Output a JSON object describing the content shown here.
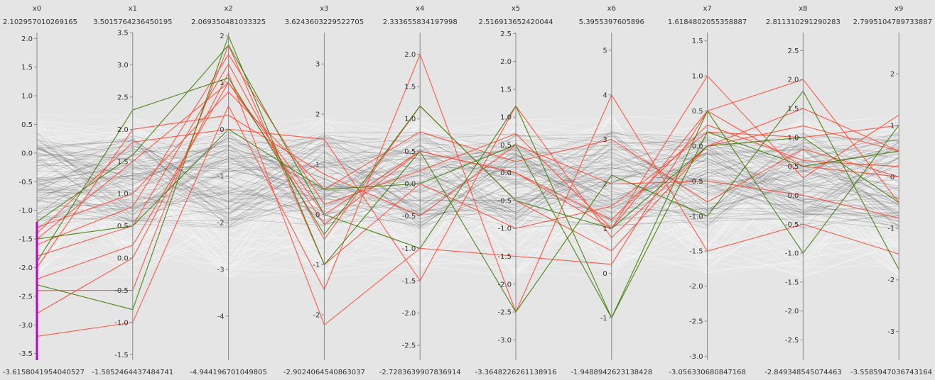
{
  "chart_data": {
    "type": "parallel-coordinates",
    "axes": [
      {
        "name": "x0",
        "max_label": "2.102957010269165",
        "min_label": "-3.6158041954040527",
        "range": [
          -3.6158041954040527,
          2.102957010269165
        ],
        "ticks": [
          "2.0",
          "1.5",
          "1.0",
          "0.5",
          "0.0",
          "-0.5",
          "-1.0",
          "-1.5",
          "-2.0",
          "-2.5",
          "-3.0",
          "-3.5"
        ],
        "tick_values": [
          2.0,
          1.5,
          1.0,
          0.5,
          0.0,
          -0.5,
          -1.0,
          -1.5,
          -2.0,
          -2.5,
          -3.0,
          -3.5
        ]
      },
      {
        "name": "x1",
        "max_label": "3.5015764236450195",
        "min_label": "-1.5852464437484741",
        "range": [
          -1.5852464437484741,
          3.5015764236450195
        ],
        "ticks": [
          "3.5",
          "3.0",
          "2.5",
          "2.0",
          "1.5",
          "1.0",
          "0.5",
          "0.0",
          "-0.5",
          "-1.0",
          "-1.5"
        ],
        "tick_values": [
          3.5,
          3.0,
          2.5,
          2.0,
          1.5,
          1.0,
          0.5,
          0.0,
          -0.5,
          -1.0,
          -1.5
        ]
      },
      {
        "name": "x2",
        "max_label": "2.069350481033325",
        "min_label": "-4.944196701049805",
        "range": [
          -4.944196701049805,
          2.069350481033325
        ],
        "ticks": [
          "2",
          "1",
          "0",
          "-1",
          "-2",
          "-3",
          "-4"
        ],
        "tick_values": [
          2,
          1,
          0,
          -1,
          -2,
          -3,
          -4
        ]
      },
      {
        "name": "x3",
        "max_label": "3.6243603229522705",
        "min_label": "-2.9024064540863037",
        "range": [
          -2.9024064540863037,
          3.6243603229522705
        ],
        "ticks": [
          "3",
          "2",
          "1",
          "0",
          "-1",
          "-2"
        ],
        "tick_values": [
          3,
          2,
          1,
          0,
          -1,
          -2
        ]
      },
      {
        "name": "x4",
        "max_label": "2.333655834197998",
        "min_label": "-2.7283639907836914",
        "range": [
          -2.7283639907836914,
          2.333655834197998
        ],
        "ticks": [
          "2.0",
          "1.5",
          "1.0",
          "0.5",
          "0.0",
          "-0.5",
          "-1.0",
          "-1.5",
          "-2.0",
          "-2.5"
        ],
        "tick_values": [
          2.0,
          1.5,
          1.0,
          0.5,
          0.0,
          -0.5,
          -1.0,
          -1.5,
          -2.0,
          -2.5
        ]
      },
      {
        "name": "x5",
        "max_label": "2.516913652420044",
        "min_label": "-3.3648226261138916",
        "range": [
          -3.3648226261138916,
          2.516913652420044
        ],
        "ticks": [
          "2.5",
          "2.0",
          "1.5",
          "1.0",
          "0.5",
          "0.0",
          "-0.5",
          "-1.0",
          "-1.5",
          "-2.0",
          "-2.5",
          "-3.0"
        ],
        "tick_values": [
          2.5,
          2.0,
          1.5,
          1.0,
          0.5,
          0.0,
          -0.5,
          -1.0,
          -1.5,
          -2.0,
          -2.5,
          -3.0
        ]
      },
      {
        "name": "x6",
        "max_label": "5.3955397605896",
        "min_label": "-1.9488942623138428",
        "range": [
          -1.9488942623138428,
          5.3955397605896
        ],
        "ticks": [
          "5",
          "4",
          "3",
          "2",
          "1",
          "0",
          "-1"
        ],
        "tick_values": [
          5,
          4,
          3,
          2,
          1,
          0,
          -1
        ]
      },
      {
        "name": "x7",
        "max_label": "1.6184802055358887",
        "min_label": "-3.056330680847168",
        "range": [
          -3.056330680847168,
          1.6184802055358887
        ],
        "ticks": [
          "1.5",
          "1.0",
          "0.5",
          "0.0",
          "-0.5",
          "-1.0",
          "-1.5",
          "-2.0",
          "-2.5",
          "-3.0"
        ],
        "tick_values": [
          1.5,
          1.0,
          0.5,
          0.0,
          -0.5,
          -1.0,
          -1.5,
          -2.0,
          -2.5,
          -3.0
        ]
      },
      {
        "name": "x8",
        "max_label": "2.811310291290283",
        "min_label": "-2.849348545074463",
        "range": [
          -2.849348545074463,
          2.811310291290283
        ],
        "ticks": [
          "2.5",
          "2.0",
          "1.5",
          "1.0",
          "0.5",
          "0.0",
          "-0.5",
          "-1.0",
          "-1.5",
          "-2.0",
          "-2.5"
        ],
        "tick_values": [
          2.5,
          2.0,
          1.5,
          1.0,
          0.5,
          0.0,
          -0.5,
          -1.0,
          -1.5,
          -2.0,
          -2.5
        ]
      },
      {
        "name": "x9",
        "max_label": "2.7995104789733887",
        "min_label": "-3.5585947036743164",
        "range": [
          -3.5585947036743164,
          2.7995104789733887
        ],
        "ticks": [
          "2",
          "1",
          "0",
          "-1",
          "-2",
          "-3"
        ],
        "tick_values": [
          2,
          1,
          0,
          -1,
          -2,
          -3
        ]
      }
    ],
    "brush": {
      "axis": "x0",
      "range": [
        -3.6158041954040527,
        -1.2
      ],
      "color": "#c000c0"
    },
    "series": [
      {
        "color": "#ff4a36",
        "lines": [
          [
            -1.5,
            1.5,
            1.0,
            0.0,
            0.5,
            0.0,
            1.0,
            0.5,
            0.5,
            0.0
          ],
          [
            -1.8,
            0.5,
            1.4,
            -0.5,
            1.2,
            -0.5,
            0.5,
            0.0,
            1.5,
            0.5
          ],
          [
            -2.0,
            2.0,
            0.3,
            0.8,
            -0.5,
            0.5,
            2.0,
            -0.5,
            0.0,
            -0.8
          ],
          [
            -2.4,
            -0.5,
            1.8,
            -1.0,
            0.0,
            -1.0,
            1.5,
            0.2,
            1.0,
            1.0
          ],
          [
            -1.3,
            1.0,
            0.8,
            0.5,
            0.8,
            0.2,
            3.0,
            -0.8,
            0.8,
            0.0
          ],
          [
            -2.8,
            0.0,
            1.2,
            -2.2,
            -1.0,
            -1.5,
            0.2,
            0.5,
            2.0,
            -0.5
          ],
          [
            -1.6,
            0.8,
            1.6,
            0.2,
            0.2,
            0.7,
            1.0,
            1.0,
            0.3,
            1.2
          ],
          [
            -3.2,
            -1.0,
            0.5,
            -1.5,
            2.0,
            -2.5,
            4.0,
            -1.5,
            -0.5,
            -1.5
          ],
          [
            -1.4,
            1.8,
            0.0,
            1.5,
            -1.5,
            1.2,
            0.8,
            0.0,
            1.2,
            0.5
          ],
          [
            -2.2,
            0.2,
            1.0,
            -0.2,
            0.5,
            0.0,
            1.2,
            0.3,
            0.6,
            0.2
          ]
        ]
      },
      {
        "color": "#3c7a00",
        "lines": [
          [
            -1.9,
            2.3,
            1.1,
            -0.4,
            1.2,
            -0.5,
            1.0,
            0.0,
            1.0,
            -0.5
          ],
          [
            -1.2,
            1.6,
            1.8,
            0.0,
            -1.0,
            1.2,
            -1.0,
            0.5,
            -1.0,
            1.0
          ],
          [
            -2.3,
            -0.8,
            2.0,
            -1.0,
            0.5,
            -2.5,
            2.2,
            -1.0,
            1.8,
            -1.8
          ],
          [
            -1.5,
            0.5,
            0.0,
            0.5,
            0.0,
            0.5,
            -1.0,
            0.2,
            0.5,
            0.5
          ]
        ]
      }
    ]
  }
}
